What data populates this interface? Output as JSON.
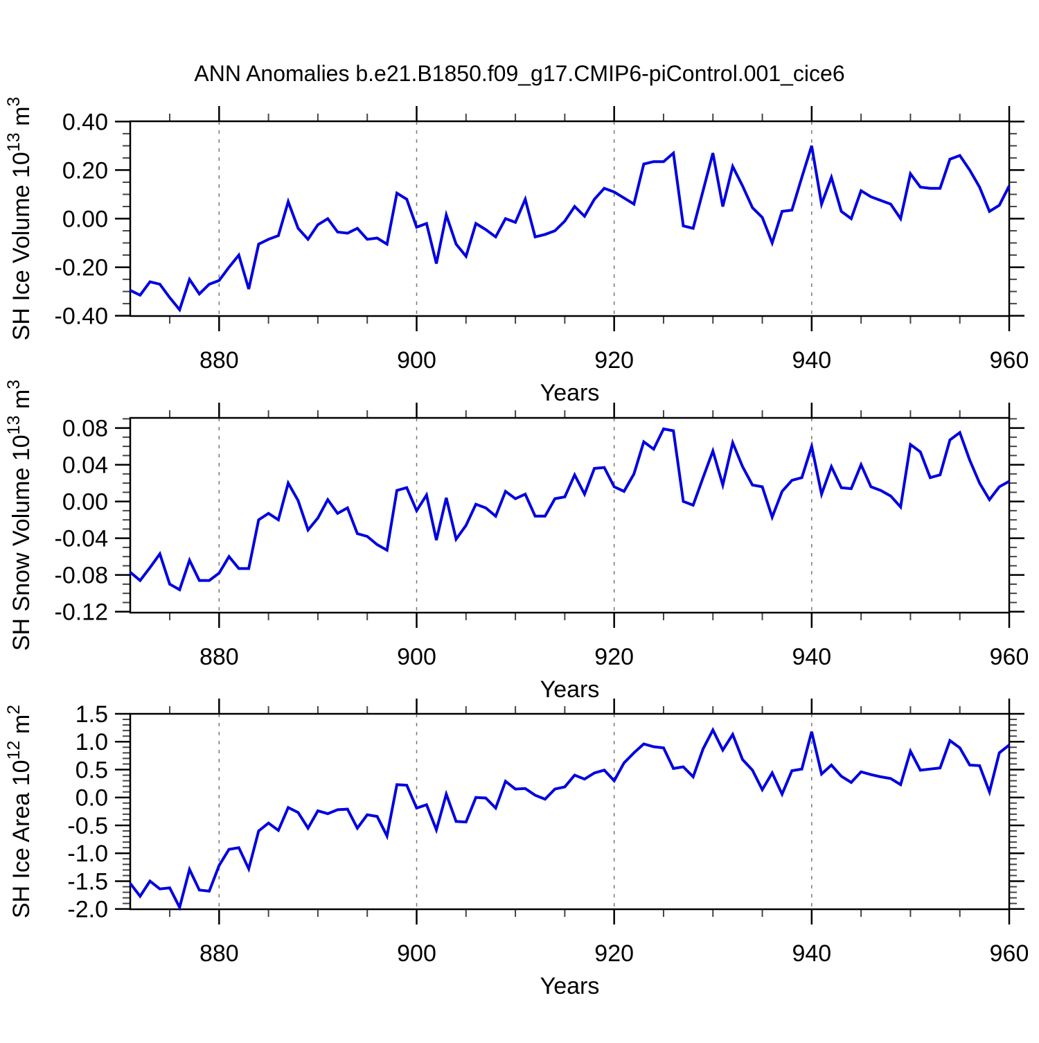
{
  "page": {
    "title": "ANN Anomalies b.e21.B1850.f09_g17.CMIP6-piControl.001_cice6"
  },
  "style": {
    "line_color": "#0000E0",
    "grid_color": "#777777",
    "axis_color": "#000000",
    "minor_tick_color": "#444444",
    "background": "#ffffff"
  },
  "chart_data": [
    {
      "type": "line",
      "name": "sh-ice-volume",
      "xlabel": "Years",
      "ylabel_parts": [
        {
          "t": "SH Ice Volume 10"
        },
        {
          "t": "13",
          "sup": true
        },
        {
          "t": " m"
        },
        {
          "t": "3",
          "sup": true
        }
      ],
      "xlim": [
        871,
        960
      ],
      "x_start": 871,
      "x_step": 1,
      "xticks": [
        880,
        900,
        920,
        940,
        960
      ],
      "xtick_labels": [
        "880",
        "900",
        "920",
        "940",
        "960"
      ],
      "xminor_step": 5,
      "grid_x": [
        880,
        900,
        920,
        940
      ],
      "ylim": [
        -0.401,
        0.401
      ],
      "yticks": [
        0.4,
        0.2,
        0.0,
        -0.2,
        -0.4
      ],
      "ytick_labels": [
        "0.40",
        "0.20",
        "0.00",
        "-0.20",
        "-0.40"
      ],
      "yminor_step": 0.05,
      "values": [
        -0.295,
        -0.315,
        -0.26,
        -0.27,
        -0.325,
        -0.375,
        -0.25,
        -0.31,
        -0.27,
        -0.255,
        -0.2,
        -0.15,
        -0.29,
        -0.105,
        -0.085,
        -0.07,
        0.07,
        -0.04,
        -0.085,
        -0.025,
        0.0,
        -0.055,
        -0.06,
        -0.04,
        -0.085,
        -0.08,
        -0.105,
        0.105,
        0.08,
        -0.035,
        -0.02,
        -0.185,
        0.015,
        -0.105,
        -0.155,
        -0.02,
        -0.045,
        -0.075,
        0.0,
        -0.015,
        0.08,
        -0.075,
        -0.065,
        -0.05,
        -0.01,
        0.05,
        0.01,
        0.08,
        0.125,
        0.11,
        0.085,
        0.06,
        0.225,
        0.235,
        0.235,
        0.27,
        -0.03,
        -0.04,
        0.115,
        0.27,
        0.05,
        0.215,
        0.135,
        0.045,
        0.005,
        -0.1,
        0.03,
        0.035,
        0.17,
        0.3,
        0.06,
        0.17,
        0.03,
        0.0,
        0.115,
        0.09,
        0.075,
        0.06,
        0.0,
        0.185,
        0.13,
        0.125,
        0.125,
        0.245,
        0.26,
        0.2,
        0.13,
        0.03,
        0.055,
        0.135
      ]
    },
    {
      "type": "line",
      "name": "sh-snow-volume",
      "xlabel": "Years",
      "ylabel_parts": [
        {
          "t": "SH Snow Volume 10"
        },
        {
          "t": "13",
          "sup": true
        },
        {
          "t": " m"
        },
        {
          "t": "3",
          "sup": true
        }
      ],
      "xlim": [
        871,
        960
      ],
      "x_start": 871,
      "x_step": 1,
      "xticks": [
        880,
        900,
        920,
        940,
        960
      ],
      "xtick_labels": [
        "880",
        "900",
        "920",
        "940",
        "960"
      ],
      "xminor_step": 5,
      "grid_x": [
        880,
        900,
        920,
        940
      ],
      "ylim": [
        -0.121,
        0.091
      ],
      "yticks": [
        0.08,
        0.04,
        0.0,
        -0.04,
        -0.08,
        -0.12
      ],
      "ytick_labels": [
        "0.08",
        "0.04",
        "0.00",
        "-0.04",
        "-0.08",
        "-0.12"
      ],
      "yminor_step": 0.01,
      "values": [
        -0.077,
        -0.086,
        -0.072,
        -0.057,
        -0.09,
        -0.096,
        -0.064,
        -0.086,
        -0.086,
        -0.078,
        -0.06,
        -0.073,
        -0.073,
        -0.02,
        -0.013,
        -0.02,
        0.02,
        0.001,
        -0.031,
        -0.018,
        0.002,
        -0.013,
        -0.007,
        -0.035,
        -0.038,
        -0.047,
        -0.053,
        0.012,
        0.015,
        -0.01,
        0.007,
        -0.042,
        0.004,
        -0.041,
        -0.026,
        -0.003,
        -0.007,
        -0.016,
        0.011,
        0.003,
        0.008,
        -0.016,
        -0.016,
        0.003,
        0.005,
        0.029,
        0.008,
        0.036,
        0.037,
        0.016,
        0.011,
        0.03,
        0.065,
        0.057,
        0.079,
        0.077,
        0.0,
        -0.004,
        0.026,
        0.055,
        0.018,
        0.064,
        0.038,
        0.018,
        0.016,
        -0.017,
        0.011,
        0.023,
        0.026,
        0.06,
        0.008,
        0.038,
        0.015,
        0.014,
        0.04,
        0.016,
        0.012,
        0.006,
        -0.006,
        0.062,
        0.054,
        0.026,
        0.029,
        0.067,
        0.075,
        0.045,
        0.02,
        0.002,
        0.016,
        0.022
      ]
    },
    {
      "type": "line",
      "name": "sh-ice-area",
      "xlabel": "Years",
      "ylabel_parts": [
        {
          "t": "SH Ice Area 10"
        },
        {
          "t": "12",
          "sup": true
        },
        {
          "t": " m"
        },
        {
          "t": "2",
          "sup": true
        }
      ],
      "xlim": [
        871,
        960
      ],
      "x_start": 871,
      "x_step": 1,
      "xticks": [
        880,
        900,
        920,
        940,
        960
      ],
      "xtick_labels": [
        "880",
        "900",
        "920",
        "940",
        "960"
      ],
      "xminor_step": 5,
      "grid_x": [
        880,
        900,
        920,
        940
      ],
      "ylim": [
        -2.004,
        1.5
      ],
      "yticks": [
        1.5,
        1.0,
        0.5,
        0.0,
        -0.5,
        -1.0,
        -1.5,
        -2.0
      ],
      "ytick_labels": [
        "1.5",
        "1.0",
        "0.5",
        "0.0",
        "-0.5",
        "-1.0",
        "-1.5",
        "-2.0"
      ],
      "yminor_step": 0.1,
      "values": [
        -1.54,
        -1.77,
        -1.5,
        -1.64,
        -1.62,
        -1.97,
        -1.29,
        -1.66,
        -1.68,
        -1.22,
        -0.93,
        -0.9,
        -1.28,
        -0.6,
        -0.46,
        -0.59,
        -0.18,
        -0.27,
        -0.55,
        -0.24,
        -0.29,
        -0.22,
        -0.21,
        -0.55,
        -0.31,
        -0.34,
        -0.69,
        0.23,
        0.22,
        -0.19,
        -0.13,
        -0.58,
        0.06,
        -0.43,
        -0.44,
        0.0,
        -0.01,
        -0.19,
        0.29,
        0.15,
        0.16,
        0.04,
        -0.03,
        0.15,
        0.19,
        0.4,
        0.33,
        0.44,
        0.49,
        0.3,
        0.62,
        0.8,
        0.96,
        0.91,
        0.89,
        0.52,
        0.55,
        0.37,
        0.87,
        1.21,
        0.85,
        1.13,
        0.68,
        0.49,
        0.14,
        0.44,
        0.06,
        0.48,
        0.51,
        1.18,
        0.42,
        0.58,
        0.38,
        0.27,
        0.46,
        0.41,
        0.37,
        0.34,
        0.23,
        0.83,
        0.49,
        0.51,
        0.53,
        1.02,
        0.89,
        0.58,
        0.57,
        0.1,
        0.8,
        0.94
      ]
    }
  ]
}
